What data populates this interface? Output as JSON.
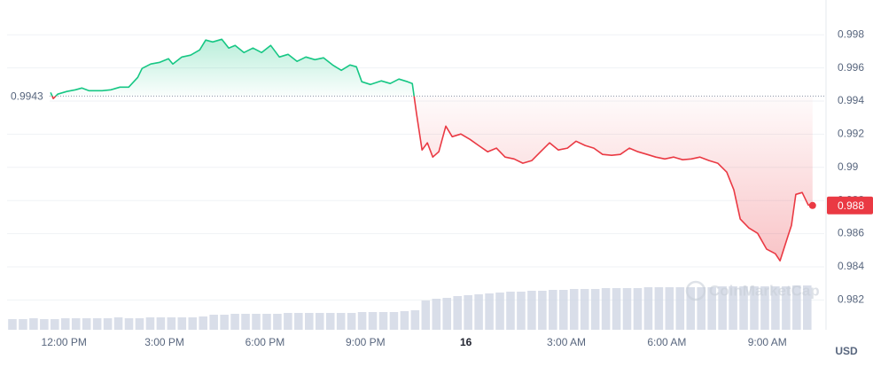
{
  "chart_data": {
    "type": "line",
    "x": [
      11.6,
      11.68,
      11.81,
      12.08,
      12.34,
      12.53,
      12.74,
      13.14,
      13.4,
      13.67,
      13.93,
      14.2,
      14.33,
      14.59,
      14.86,
      15.12,
      15.25,
      15.52,
      15.78,
      16.05,
      16.23,
      16.44,
      16.71,
      16.92,
      17.11,
      17.37,
      17.64,
      17.9,
      18.17,
      18.43,
      18.69,
      18.96,
      19.22,
      19.49,
      19.75,
      20.02,
      20.28,
      20.54,
      20.73,
      20.89,
      21.15,
      21.47,
      21.74,
      22,
      22.26,
      22.4,
      22.53,
      22.69,
      22.85,
      23.01,
      23.19,
      23.4,
      23.59,
      23.85,
      24.12,
      24.38,
      24.65,
      24.91,
      25.17,
      25.44,
      25.7,
      25.97,
      26.23,
      26.5,
      26.76,
      27.03,
      27.29,
      27.56,
      27.82,
      28.08,
      28.35,
      28.61,
      28.88,
      29.14,
      29.41,
      29.67,
      29.94,
      30.2,
      30.47,
      30.73,
      30.99,
      31.26,
      31.52,
      31.79,
      32,
      32.19,
      32.45,
      32.71,
      32.98,
      33.24,
      33.38,
      33.59,
      33.72,
      33.85,
      34.04,
      34.22,
      34.35
    ],
    "values": [
      0.99452,
      0.99415,
      0.99442,
      0.99458,
      0.99468,
      0.99479,
      0.99463,
      0.99463,
      0.99468,
      0.99484,
      0.99484,
      0.99543,
      0.99597,
      0.99624,
      0.99634,
      0.99656,
      0.99624,
      0.99666,
      0.99677,
      0.99709,
      0.99768,
      0.99757,
      0.99773,
      0.9972,
      0.99736,
      0.99693,
      0.9972,
      0.99693,
      0.99736,
      0.99666,
      0.99682,
      0.9964,
      0.99666,
      0.9965,
      0.99661,
      0.99618,
      0.99586,
      0.99618,
      0.99607,
      0.99517,
      0.995,
      0.99522,
      0.99506,
      0.99533,
      0.99517,
      0.99506,
      0.99319,
      0.99105,
      0.99148,
      0.99062,
      0.99094,
      0.99249,
      0.99185,
      0.99201,
      0.99169,
      0.99132,
      0.99094,
      0.99116,
      0.99062,
      0.99051,
      0.99025,
      0.99041,
      0.99094,
      0.99148,
      0.99105,
      0.99116,
      0.99158,
      0.99132,
      0.99116,
      0.99078,
      0.99073,
      0.99078,
      0.99116,
      0.99094,
      0.99078,
      0.99062,
      0.99051,
      0.99062,
      0.99046,
      0.99051,
      0.99062,
      0.99041,
      0.99025,
      0.98971,
      0.98864,
      0.98688,
      0.98634,
      0.98602,
      0.98506,
      0.98479,
      0.98436,
      0.9857,
      0.9865,
      0.98837,
      0.98848,
      0.98773,
      0.9877
    ],
    "reference": 0.9943,
    "current_label": "0.988",
    "up_color": "#16c784",
    "down_color": "#ea3943",
    "xlim": [
      10.3,
      34.7
    ],
    "xticks": [
      {
        "value": 12,
        "label": "12:00 PM"
      },
      {
        "value": 15,
        "label": "3:00 PM"
      },
      {
        "value": 18,
        "label": "6:00 PM"
      },
      {
        "value": 21,
        "label": "9:00 PM"
      },
      {
        "value": 24,
        "label": "16"
      },
      {
        "value": 27,
        "label": "3:00 AM"
      },
      {
        "value": 30,
        "label": "6:00 AM"
      },
      {
        "value": 33,
        "label": "9:00 AM"
      }
    ],
    "ylim": [
      0.9802,
      1.0001
    ],
    "yticks": [
      0.982,
      0.984,
      0.986,
      0.988,
      0.99,
      0.992,
      0.994,
      0.996,
      0.998
    ],
    "grid": true,
    "currency": "USD",
    "watermark": "CoinMarketCap",
    "volume": {
      "color": "#cfd6e4",
      "ylim": [
        0,
        100
      ],
      "values": [
        12,
        12,
        13,
        12,
        12,
        13,
        13,
        13,
        13,
        13,
        14,
        13,
        13,
        14,
        14,
        14,
        14,
        14,
        15,
        17,
        17,
        18,
        18,
        18,
        18,
        18,
        19,
        19,
        19,
        19,
        19,
        19,
        19,
        20,
        20,
        20,
        20,
        21,
        22,
        33,
        35,
        36,
        38,
        39,
        40,
        41,
        42,
        43,
        43,
        44,
        44,
        45,
        45,
        46,
        46,
        46,
        47,
        47,
        47,
        47,
        48,
        48,
        48,
        48,
        48,
        48,
        48,
        49,
        49,
        49,
        49,
        49,
        49,
        49,
        50,
        50
      ]
    }
  }
}
